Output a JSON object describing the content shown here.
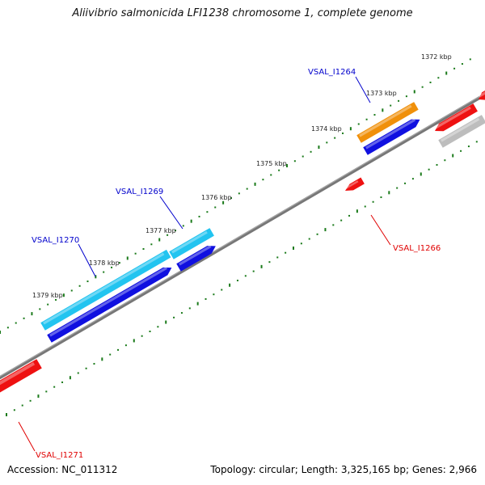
{
  "title": "Aliivibrio salmonicida LFI1238 chromosome 1, complete genome",
  "accession": "Accession: NC_011312",
  "summary": "Topology: circular; Length: 3,325,165 bp; Genes: 2,966",
  "colors": {
    "backbone": "#7a7a7a",
    "tick": "#1a7a1a",
    "forward_label": "#0000cc",
    "reverse_label": "#e00000",
    "orange": "#f0900a",
    "cyan": "#22c4f0",
    "blue": "#1010e0",
    "red": "#ee1111",
    "gray": "#bdbdbd"
  },
  "scale_labels": [
    "1372 kbp",
    "1373 kbp",
    "1374 kbp",
    "1375 kbp",
    "1376 kbp",
    "1377 kbp",
    "1378 kbp",
    "1379 kbp"
  ],
  "gene_labels": {
    "forward": [
      "VSAL_I1264",
      "VSAL_I1269",
      "VSAL_I1270"
    ],
    "reverse": [
      "VSAL_I1266",
      "VSAL_I1271"
    ]
  }
}
